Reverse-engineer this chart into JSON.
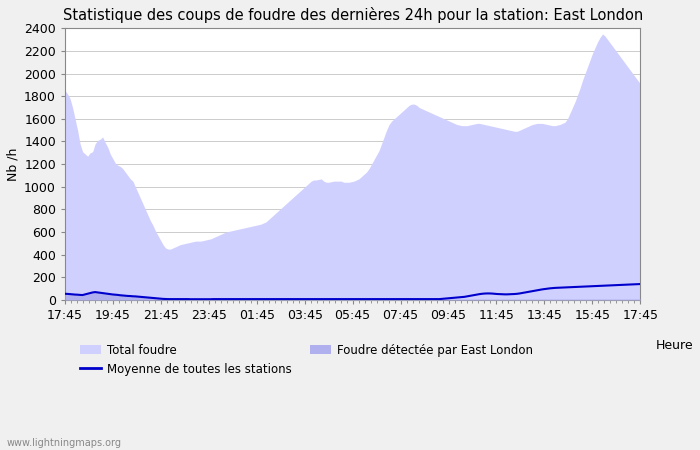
{
  "title": "Statistique des coups de foudre des dernières 24h pour la station: East London",
  "ylabel": "Nb /h",
  "ylim": [
    0,
    2400
  ],
  "yticks": [
    0,
    200,
    400,
    600,
    800,
    1000,
    1200,
    1400,
    1600,
    1800,
    2000,
    2200,
    2400
  ],
  "xtick_labels": [
    "17:45",
    "19:45",
    "21:45",
    "23:45",
    "01:45",
    "03:45",
    "05:45",
    "07:45",
    "09:45",
    "11:45",
    "13:45",
    "15:45",
    "17:45"
  ],
  "xlabel_right": "Heure",
  "watermark": "www.lightningmaps.org",
  "legend_total": "Total foudre",
  "legend_mean": "Moyenne de toutes les stations",
  "legend_local": "Foudre détectée par East London",
  "total_foudre": [
    1850,
    1820,
    1780,
    1700,
    1600,
    1500,
    1380,
    1310,
    1290,
    1270,
    1300,
    1310,
    1380,
    1410,
    1420,
    1440,
    1390,
    1350,
    1290,
    1250,
    1210,
    1190,
    1180,
    1160,
    1130,
    1100,
    1070,
    1050,
    1000,
    950,
    900,
    850,
    800,
    750,
    700,
    660,
    610,
    570,
    530,
    490,
    460,
    450,
    450,
    460,
    470,
    480,
    490,
    495,
    500,
    505,
    510,
    515,
    520,
    520,
    520,
    525,
    530,
    535,
    540,
    550,
    560,
    570,
    580,
    590,
    600,
    605,
    610,
    615,
    620,
    625,
    630,
    635,
    640,
    645,
    650,
    655,
    660,
    665,
    670,
    680,
    690,
    710,
    730,
    750,
    770,
    790,
    810,
    830,
    850,
    870,
    890,
    910,
    930,
    950,
    970,
    990,
    1010,
    1030,
    1050,
    1060,
    1060,
    1065,
    1070,
    1050,
    1040,
    1040,
    1045,
    1050,
    1050,
    1050,
    1050,
    1040,
    1040,
    1040,
    1045,
    1050,
    1060,
    1070,
    1090,
    1110,
    1130,
    1160,
    1200,
    1240,
    1280,
    1320,
    1380,
    1440,
    1500,
    1550,
    1580,
    1600,
    1620,
    1640,
    1660,
    1680,
    1700,
    1720,
    1730,
    1730,
    1720,
    1700,
    1690,
    1680,
    1670,
    1660,
    1650,
    1640,
    1630,
    1620,
    1610,
    1600,
    1590,
    1580,
    1570,
    1560,
    1550,
    1545,
    1540,
    1540,
    1540,
    1545,
    1550,
    1555,
    1560,
    1560,
    1555,
    1550,
    1545,
    1540,
    1535,
    1530,
    1525,
    1520,
    1515,
    1510,
    1505,
    1500,
    1495,
    1490,
    1490,
    1500,
    1510,
    1520,
    1530,
    1540,
    1550,
    1555,
    1560,
    1560,
    1560,
    1555,
    1550,
    1545,
    1540,
    1540,
    1545,
    1550,
    1560,
    1570,
    1600,
    1650,
    1700,
    1750,
    1810,
    1870,
    1940,
    2000,
    2060,
    2120,
    2180,
    2230,
    2280,
    2320,
    2350,
    2330,
    2300,
    2270,
    2240,
    2210,
    2180,
    2150,
    2120,
    2090,
    2060,
    2030,
    2000,
    1970,
    1940,
    1910
  ],
  "local_foudre": [
    60,
    58,
    55,
    52,
    50,
    48,
    46,
    44,
    52,
    60,
    68,
    72,
    75,
    72,
    68,
    65,
    62,
    58,
    54,
    50,
    48,
    45,
    42,
    40,
    38,
    36,
    35,
    33,
    32,
    30,
    28,
    26,
    24,
    22,
    20,
    18,
    16,
    14,
    12,
    10,
    9,
    8,
    8,
    8,
    8,
    8,
    8,
    8,
    8,
    8,
    7,
    7,
    7,
    7,
    7,
    7,
    7,
    7,
    7,
    8,
    8,
    8,
    8,
    8,
    8,
    8,
    8,
    8,
    8,
    8,
    8,
    8,
    8,
    8,
    8,
    8,
    8,
    8,
    8,
    8,
    8,
    8,
    8,
    8,
    8,
    8,
    8,
    8,
    8,
    8,
    8,
    8,
    8,
    8,
    8,
    8,
    8,
    8,
    8,
    8,
    8,
    8,
    8,
    8,
    8,
    8,
    8,
    8,
    8,
    8,
    8,
    8,
    8,
    8,
    8,
    8,
    8,
    8,
    8,
    8,
    8,
    8,
    8,
    8,
    8,
    8,
    8,
    8,
    8,
    8,
    8,
    8,
    8,
    8,
    8,
    8,
    8,
    8,
    8,
    8,
    8,
    8,
    8,
    8,
    8,
    8,
    8,
    8,
    8,
    8,
    8,
    8,
    8,
    8,
    8,
    8,
    8,
    8,
    8,
    8,
    8,
    8,
    8,
    8,
    8,
    8,
    8,
    8,
    8,
    8,
    8,
    8,
    8,
    8,
    8,
    8,
    8,
    8,
    8,
    8,
    8,
    8,
    8,
    8,
    8,
    8,
    8,
    8,
    8,
    8,
    8,
    8,
    8,
    8,
    8,
    8,
    8,
    8,
    8,
    8,
    8,
    8,
    8,
    8,
    8,
    8,
    8,
    8,
    8,
    8,
    8,
    8,
    8,
    8,
    8,
    8,
    8,
    8,
    8,
    8,
    8,
    8,
    8,
    8,
    8,
    8,
    8,
    8,
    8,
    8
  ],
  "moyenne": [
    55,
    54,
    52,
    50,
    48,
    47,
    45,
    44,
    50,
    57,
    63,
    67,
    70,
    67,
    64,
    61,
    58,
    55,
    52,
    49,
    47,
    45,
    42,
    40,
    38,
    36,
    35,
    33,
    32,
    30,
    28,
    26,
    24,
    22,
    20,
    18,
    16,
    14,
    12,
    10,
    9,
    8,
    8,
    8,
    8,
    8,
    8,
    8,
    8,
    8,
    7,
    7,
    7,
    7,
    7,
    7,
    7,
    7,
    7,
    8,
    8,
    8,
    8,
    8,
    8,
    8,
    8,
    8,
    8,
    8,
    8,
    8,
    8,
    8,
    8,
    8,
    8,
    8,
    8,
    8,
    8,
    8,
    8,
    8,
    8,
    8,
    8,
    8,
    8,
    8,
    8,
    8,
    8,
    8,
    8,
    8,
    8,
    8,
    8,
    8,
    8,
    8,
    8,
    8,
    8,
    8,
    8,
    8,
    8,
    8,
    8,
    8,
    8,
    8,
    8,
    8,
    8,
    8,
    8,
    8,
    8,
    8,
    8,
    8,
    8,
    8,
    8,
    8,
    8,
    8,
    8,
    8,
    8,
    8,
    8,
    8,
    8,
    8,
    8,
    8,
    8,
    8,
    8,
    8,
    8,
    8,
    8,
    8,
    8,
    8,
    10,
    12,
    14,
    16,
    18,
    20,
    22,
    24,
    26,
    28,
    32,
    36,
    40,
    44,
    48,
    52,
    55,
    57,
    58,
    58,
    57,
    55,
    53,
    52,
    51,
    50,
    50,
    51,
    52,
    53,
    55,
    58,
    62,
    66,
    70,
    74,
    78,
    82,
    86,
    90,
    94,
    97,
    100,
    103,
    105,
    107,
    108,
    109,
    110,
    111,
    112,
    113,
    114,
    115,
    116,
    117,
    118,
    119,
    120,
    121,
    122,
    123,
    124,
    125,
    126,
    127,
    128,
    129,
    130,
    131,
    132,
    133,
    134,
    135,
    136,
    137,
    138,
    139,
    140,
    141
  ],
  "bg_color": "#f0f0f0",
  "plot_bg_color": "#ffffff",
  "fill_total_color": "#d0d0ff",
  "fill_local_color": "#b0b0ee",
  "line_color": "#0000cc",
  "grid_color": "#cccccc",
  "title_fontsize": 10.5,
  "tick_fontsize": 9,
  "axis_color": "#888888"
}
